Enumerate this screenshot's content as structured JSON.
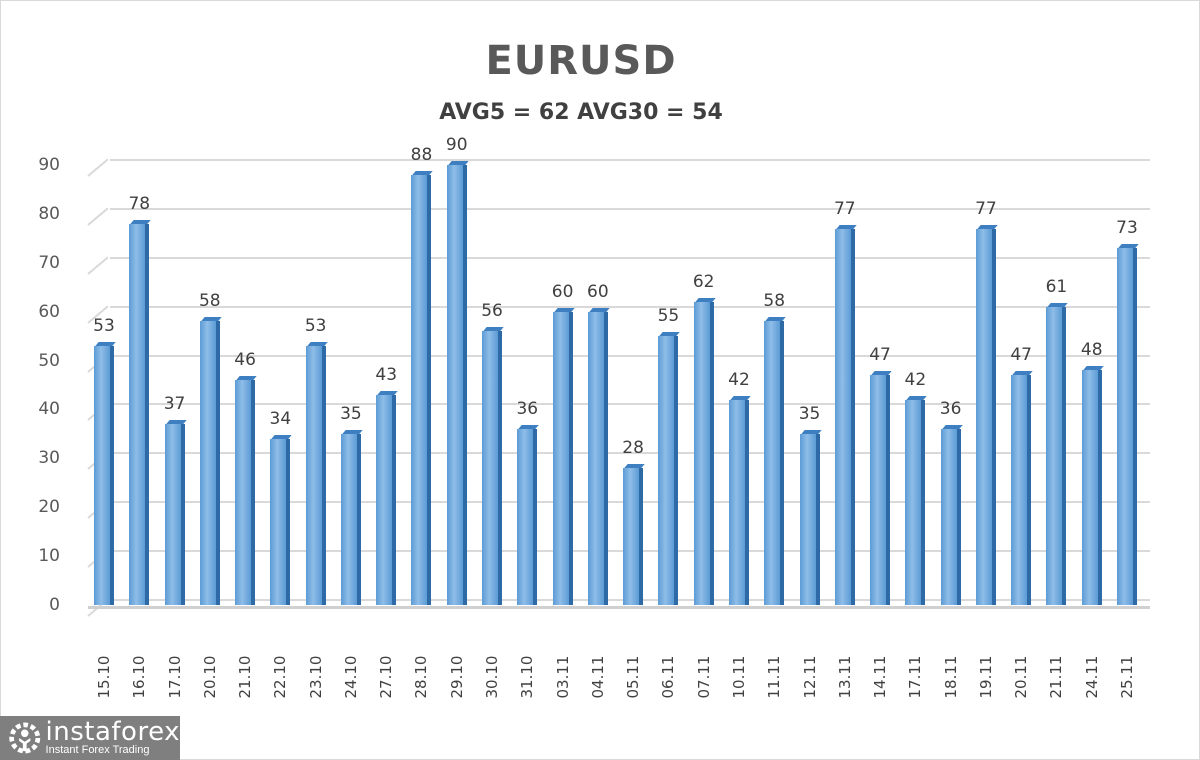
{
  "chart_data": {
    "type": "bar",
    "title": "EURUSD",
    "subtitle": "AVG5 = 62 AVG30 = 54",
    "xlabel": "",
    "ylabel": "",
    "ylim": [
      0,
      90
    ],
    "yticks": [
      0,
      10,
      20,
      30,
      40,
      50,
      60,
      70,
      80,
      90
    ],
    "grid": true,
    "legend": null,
    "categories": [
      "15.10",
      "16.10",
      "17.10",
      "20.10",
      "21.10",
      "22.10",
      "23.10",
      "24.10",
      "27.10",
      "28.10",
      "29.10",
      "30.10",
      "31.10",
      "03.11",
      "04.11",
      "05.11",
      "06.11",
      "07.11",
      "10.11",
      "11.11",
      "12.11",
      "13.11",
      "14.11",
      "17.11",
      "18.11",
      "19.11",
      "20.11",
      "21.11",
      "24.11",
      "25.11"
    ],
    "values": [
      53,
      78,
      37,
      58,
      46,
      34,
      53,
      35,
      43,
      88,
      90,
      56,
      36,
      60,
      60,
      28,
      55,
      62,
      42,
      58,
      35,
      77,
      47,
      42,
      36,
      77,
      47,
      61,
      48,
      73
    ],
    "bar_color": "#5b9bd5"
  },
  "logo": {
    "name": "instaforex",
    "tagline": "Instant Forex Trading"
  }
}
